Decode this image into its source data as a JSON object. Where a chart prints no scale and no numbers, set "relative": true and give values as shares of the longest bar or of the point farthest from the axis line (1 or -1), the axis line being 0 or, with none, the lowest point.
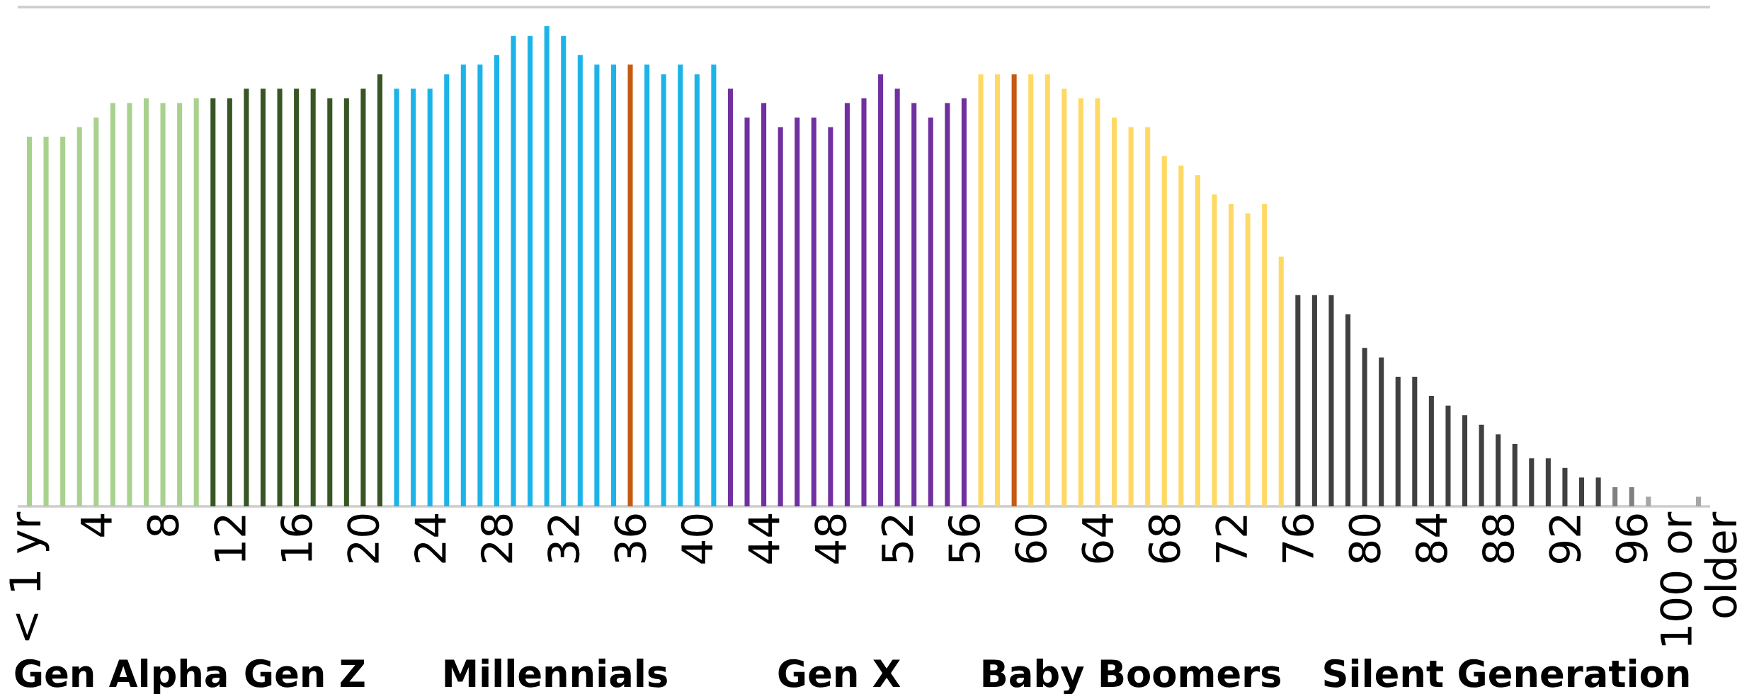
{
  "chart_data": {
    "type": "bar",
    "relative": true,
    "categories": [
      "< 1 yr",
      null,
      null,
      null,
      "4",
      null,
      null,
      null,
      "8",
      null,
      null,
      null,
      "12",
      null,
      null,
      null,
      "16",
      null,
      null,
      null,
      "20",
      null,
      null,
      null,
      "24",
      null,
      null,
      null,
      "28",
      null,
      null,
      null,
      "32",
      null,
      null,
      null,
      "36",
      null,
      null,
      null,
      "40",
      null,
      null,
      null,
      "44",
      null,
      null,
      null,
      "48",
      null,
      null,
      null,
      "52",
      null,
      null,
      null,
      "56",
      null,
      null,
      null,
      "60",
      null,
      null,
      null,
      "64",
      null,
      null,
      null,
      "68",
      null,
      null,
      null,
      "72",
      null,
      null,
      null,
      "76",
      null,
      null,
      null,
      "80",
      null,
      null,
      null,
      "84",
      null,
      null,
      null,
      "88",
      null,
      null,
      null,
      "92",
      null,
      null,
      null,
      "96",
      null,
      null,
      null,
      "100 or older"
    ],
    "values": [
      0.77,
      0.77,
      0.77,
      0.79,
      0.81,
      0.84,
      0.84,
      0.85,
      0.84,
      0.84,
      0.85,
      0.85,
      0.85,
      0.87,
      0.87,
      0.87,
      0.87,
      0.87,
      0.85,
      0.85,
      0.87,
      0.9,
      0.87,
      0.87,
      0.87,
      0.9,
      0.92,
      0.92,
      0.94,
      0.98,
      0.98,
      1,
      0.98,
      0.94,
      0.92,
      0.92,
      0.92,
      0.92,
      0.9,
      0.92,
      0.9,
      0.92,
      0.87,
      0.81,
      0.84,
      0.79,
      0.81,
      0.81,
      0.79,
      0.84,
      0.85,
      0.9,
      0.87,
      0.84,
      0.81,
      0.84,
      0.85,
      0.9,
      0.9,
      0.9,
      0.9,
      0.9,
      0.87,
      0.85,
      0.85,
      0.81,
      0.79,
      0.79,
      0.73,
      0.71,
      0.69,
      0.65,
      0.63,
      0.61,
      0.63,
      0.52,
      0.44,
      0.44,
      0.44,
      0.4,
      0.33,
      0.31,
      0.27,
      0.27,
      0.23,
      0.21,
      0.19,
      0.17,
      0.15,
      0.13,
      0.1,
      0.1,
      0.08,
      0.06,
      0.06,
      0.04,
      0.04,
      0.02,
      0,
      0,
      0.02
    ],
    "colors": [
      "#a9d18e",
      "#a9d18e",
      "#a9d18e",
      "#a9d18e",
      "#a9d18e",
      "#a9d18e",
      "#a9d18e",
      "#a9d18e",
      "#a9d18e",
      "#a9d18e",
      "#a9d18e",
      "#375623",
      "#375623",
      "#375623",
      "#375623",
      "#375623",
      "#375623",
      "#375623",
      "#375623",
      "#375623",
      "#375623",
      "#375623",
      "#1cb4e8",
      "#1cb4e8",
      "#1cb4e8",
      "#1cb4e8",
      "#1cb4e8",
      "#1cb4e8",
      "#1cb4e8",
      "#1cb4e8",
      "#1cb4e8",
      "#1cb4e8",
      "#1cb4e8",
      "#1cb4e8",
      "#1cb4e8",
      "#1cb4e8",
      "#c55a11",
      "#1cb4e8",
      "#1cb4e8",
      "#1cb4e8",
      "#1cb4e8",
      "#1cb4e8",
      "#7030a0",
      "#7030a0",
      "#7030a0",
      "#7030a0",
      "#7030a0",
      "#7030a0",
      "#7030a0",
      "#7030a0",
      "#7030a0",
      "#7030a0",
      "#7030a0",
      "#7030a0",
      "#7030a0",
      "#7030a0",
      "#7030a0",
      "#ffd966",
      "#ffd966",
      "#c55a11",
      "#ffd966",
      "#ffd966",
      "#ffd966",
      "#ffd966",
      "#ffd966",
      "#ffd966",
      "#ffd966",
      "#ffd966",
      "#ffd966",
      "#ffd966",
      "#ffd966",
      "#ffd966",
      "#ffd966",
      "#ffd966",
      "#ffd966",
      "#ffd966",
      "#404040",
      "#404040",
      "#404040",
      "#404040",
      "#404040",
      "#404040",
      "#404040",
      "#404040",
      "#404040",
      "#404040",
      "#404040",
      "#404040",
      "#404040",
      "#404040",
      "#404040",
      "#404040",
      "#404040",
      "#404040",
      "#404040",
      "#808080",
      "#808080",
      "#a6a6a6",
      "#a6a6a6",
      "#a6a6a6",
      "#a6a6a6"
    ],
    "annotations": [
      "Gen Alpha",
      "Gen Z",
      "Millennials",
      "Gen X",
      "Baby Boomers",
      "Silent Generation"
    ]
  }
}
